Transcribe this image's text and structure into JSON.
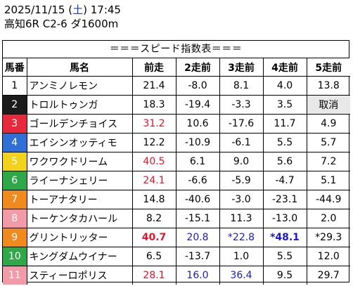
{
  "header": {
    "date": "2025/11/15",
    "dow": "土",
    "time": "17:45",
    "race": "高知6R C2-6 ダ1600m"
  },
  "table_title": "＝＝＝スピード指数表＝＝＝",
  "columns": [
    "馬番",
    "馬名",
    "前走",
    "2走前",
    "3走前",
    "4走前",
    "5走前"
  ],
  "rows": [
    {
      "num": "1",
      "name": "アンミノレモン",
      "v": [
        "21.4",
        "-8.0",
        "8.1",
        "4.0",
        "13.8"
      ]
    },
    {
      "num": "2",
      "name": "トロルトゥンガ",
      "v": [
        "18.3",
        "-19.4",
        "-3.3",
        "3.5",
        "取消"
      ]
    },
    {
      "num": "3",
      "name": "ゴールデンチョイス",
      "v": [
        "31.2",
        "10.6",
        "-17.6",
        "11.7",
        "4.9"
      ]
    },
    {
      "num": "4",
      "name": "エイシンオッティモ",
      "v": [
        "12.2",
        "-10.9",
        "-6.1",
        "5.5",
        "5.7"
      ]
    },
    {
      "num": "5",
      "name": "ワクワクドリーム",
      "v": [
        "40.5",
        "6.1",
        "9.0",
        "5.6",
        "7.2"
      ]
    },
    {
      "num": "6",
      "name": "ライーナシェリー",
      "v": [
        "24.1",
        "-6.6",
        "-5.9",
        "-4.7",
        "5.1"
      ]
    },
    {
      "num": "7",
      "name": "トーアナタリー",
      "v": [
        "14.8",
        "-40.6",
        "-3.0",
        "-23.1",
        "-44.9"
      ]
    },
    {
      "num": "8",
      "name": "トーケンタカハール",
      "v": [
        "8.2",
        "-15.1",
        "11.3",
        "-13.0",
        "2.0"
      ]
    },
    {
      "num": "9",
      "name": "グリントリッター",
      "v": [
        "40.7",
        "20.8",
        "*22.8",
        "*48.1",
        "*29.3"
      ]
    },
    {
      "num": "10",
      "name": "キングダムウイナー",
      "v": [
        "6.5",
        "-13.7",
        "1.0",
        "5.5",
        "12.0"
      ]
    },
    {
      "num": "11",
      "name": "スティーロポリス",
      "v": [
        "28.1",
        "16.0",
        "36.4",
        "9.5",
        "29.7"
      ]
    }
  ],
  "gate_colors": {
    "1": {
      "bg": "#ffffff",
      "fg": "#000000"
    },
    "2": {
      "bg": "#1b1b1b",
      "fg": "#ffffff"
    },
    "3": {
      "bg": "#e8293b",
      "fg": "#ffffff"
    },
    "4": {
      "bg": "#2f6fd6",
      "fg": "#ffffff"
    },
    "5": {
      "bg": "#f2d21b",
      "fg": "#ffffff"
    },
    "6": {
      "bg": "#2fa84a",
      "fg": "#ffffff"
    },
    "7": {
      "bg": "#f08a1c",
      "fg": "#ffffff"
    },
    "8": {
      "bg": "#f39aa9",
      "fg": "#ffffff"
    },
    "9": {
      "bg": "#f08a1c",
      "fg": "#ffffff"
    },
    "10": {
      "bg": "#2fa84a",
      "fg": "#ffffff"
    },
    "11": {
      "bg": "#f39aa9",
      "fg": "#ffffff"
    }
  },
  "cell_styles": {
    "2-4": "gray",
    "3-0": "red",
    "5-0": "red",
    "6-0": "red",
    "9-0": "red bold",
    "9-1": "blue",
    "9-2": "blue",
    "9-3": "blue bold",
    "11-0": "red",
    "11-1": "blue",
    "11-2": "blue"
  }
}
